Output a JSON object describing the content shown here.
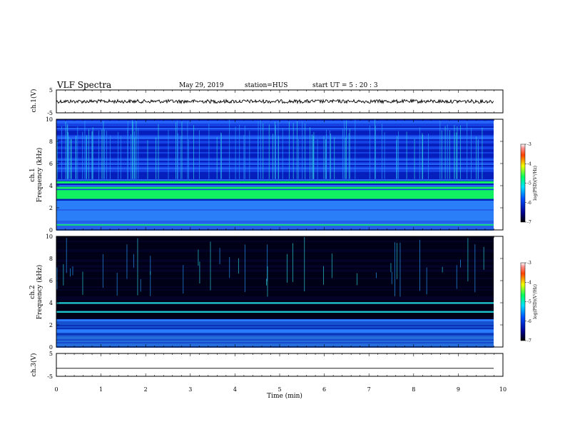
{
  "header": {
    "title": "VLF Spectra",
    "date": "May 29, 2019",
    "station": "station=HUS",
    "start": "start  UT  =   5  : 20 : 3"
  },
  "chart_data": [
    {
      "type": "line",
      "panel": "ch1-waveform",
      "ylabel": "ch.1(V)",
      "ylim": [
        -5,
        5
      ],
      "ytick_labels": [
        "5",
        "-5"
      ],
      "xlim": [
        0,
        10
      ],
      "description_level": 0.0,
      "trace_color": "#000000"
    },
    {
      "type": "heatmap",
      "panel": "ch1-spectrogram",
      "ylabel_line1": "ch.1",
      "ylabel_line2": "Frequency (kHz)",
      "ylim": [
        0,
        10
      ],
      "ytick_labels": [
        "0",
        "2",
        "4",
        "6",
        "8",
        "10"
      ],
      "xlim": [
        0,
        10
      ],
      "colorbar": {
        "label": "log(PSD)(V²/Hz)",
        "range": [
          -7,
          -3
        ],
        "tick_labels": [
          "-3",
          "-4",
          "-5",
          "-6",
          "-7"
        ]
      },
      "bands_khz": [
        {
          "from": 2.8,
          "to": 3.6,
          "level": "strong"
        },
        {
          "from": 3.7,
          "to": 3.9,
          "level": "strong"
        },
        {
          "from": 4.2,
          "to": 4.4,
          "level": "strong"
        },
        {
          "from": 0.4,
          "to": 0.5,
          "level": "strong"
        }
      ]
    },
    {
      "type": "heatmap",
      "panel": "ch2-spectrogram",
      "ylabel_line1": "ch.2",
      "ylabel_line2": "Frequency (kHz)",
      "ylim": [
        0,
        10
      ],
      "ytick_labels": [
        "0",
        "2",
        "4",
        "6",
        "8",
        "10"
      ],
      "xlim": [
        0,
        10
      ],
      "colorbar": {
        "label": "log(PSD)(V²/Hz)",
        "range": [
          -7,
          -3
        ],
        "tick_labels": [
          "-3",
          "-4",
          "-5",
          "-6",
          "-7"
        ]
      },
      "bands_khz": [
        {
          "from": 3.1,
          "to": 3.25,
          "level": "medium"
        },
        {
          "from": 3.9,
          "to": 4.05,
          "level": "medium"
        },
        {
          "from": 2.3,
          "to": 2.5,
          "level": "weak"
        },
        {
          "from": 1.3,
          "to": 1.6,
          "level": "weak"
        }
      ]
    },
    {
      "type": "line",
      "panel": "ch3-waveform",
      "ylabel": "ch.3(V)",
      "ylim": [
        -5,
        5
      ],
      "ytick_labels": [
        "5",
        "-5"
      ],
      "xlim": [
        0,
        10
      ],
      "description_level": -1.5,
      "trace_color": "#000000"
    }
  ],
  "xaxis": {
    "label": "Time (min)",
    "tick_labels": [
      "0",
      "1",
      "2",
      "3",
      "4",
      "5",
      "6",
      "7",
      "8",
      "9",
      "10"
    ]
  }
}
